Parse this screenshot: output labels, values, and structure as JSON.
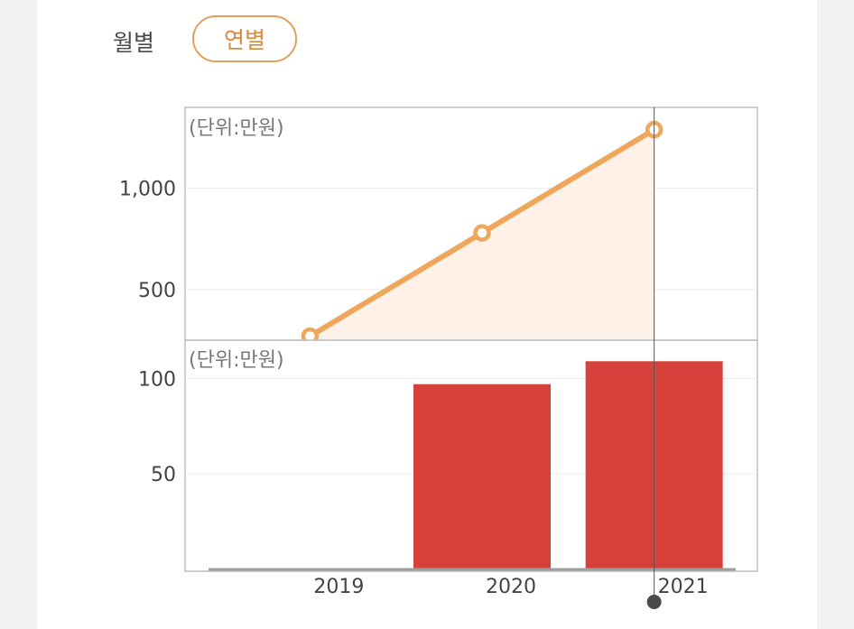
{
  "toggle": {
    "monthly_label": "월별",
    "yearly_label": "연별",
    "selected": "연별"
  },
  "colors": {
    "line": "#efa75e",
    "area": "#fdf1e8",
    "bar": "#d6423b",
    "accent": "#d9893c"
  },
  "chart_data": [
    {
      "type": "line",
      "unit_label": "(단위:만원)",
      "x": [
        "2019",
        "2020",
        "2021"
      ],
      "values": [
        270,
        780,
        1290
      ],
      "ylim": [
        250,
        1400
      ],
      "yticks": [
        500,
        1000
      ],
      "ytick_labels": [
        "500",
        "1,000"
      ],
      "grid": true,
      "fill_area": true
    },
    {
      "type": "bar",
      "unit_label": "(단위:만원)",
      "categories": [
        "2019",
        "2020",
        "2021"
      ],
      "values": [
        0.5,
        97,
        109
      ],
      "ylim": [
        0,
        120
      ],
      "yticks": [
        50,
        100
      ],
      "ytick_labels": [
        "50",
        "100"
      ],
      "grid": true
    }
  ],
  "cursor": {
    "category": "2021"
  }
}
